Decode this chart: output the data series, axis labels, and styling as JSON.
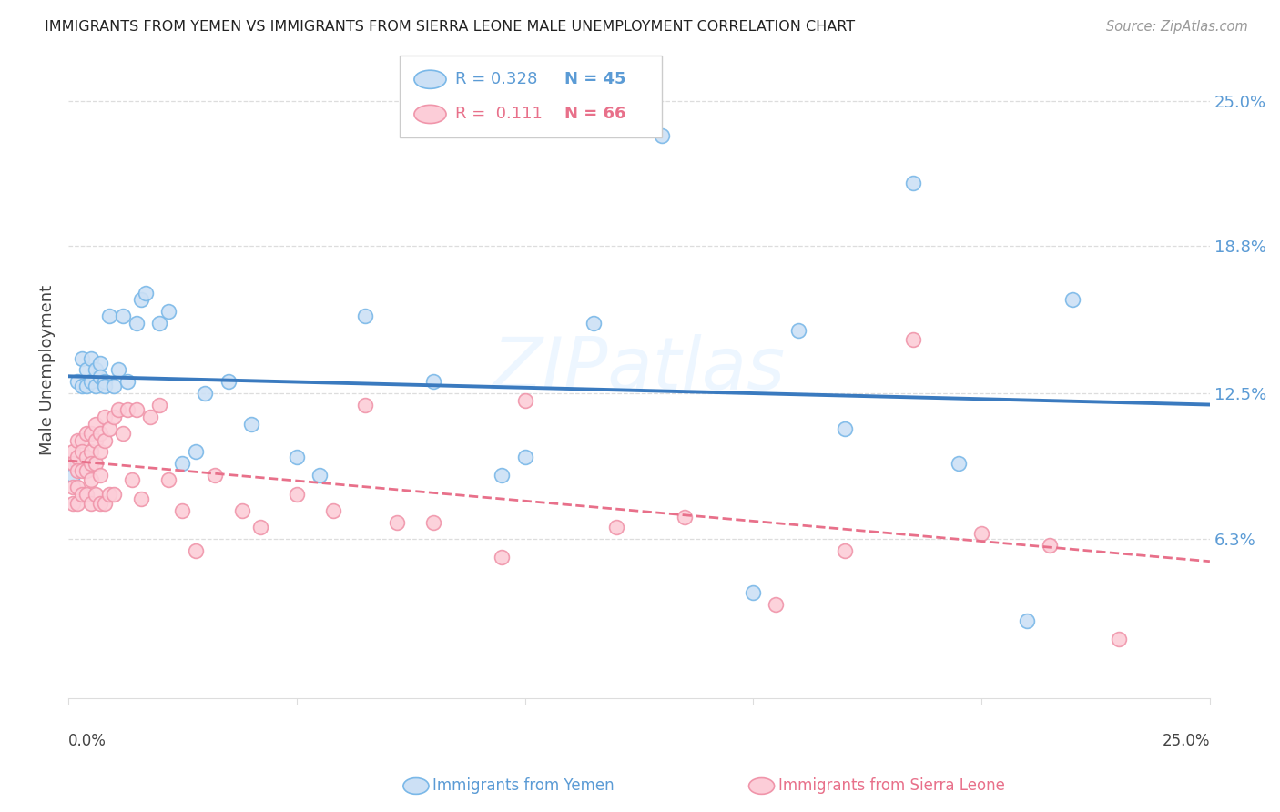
{
  "title": "IMMIGRANTS FROM YEMEN VS IMMIGRANTS FROM SIERRA LEONE MALE UNEMPLOYMENT CORRELATION CHART",
  "source": "Source: ZipAtlas.com",
  "ylabel": "Male Unemployment",
  "ytick_labels": [
    "25.0%",
    "18.8%",
    "12.5%",
    "6.3%"
  ],
  "ytick_values": [
    0.25,
    0.188,
    0.125,
    0.063
  ],
  "xlim": [
    0.0,
    0.25
  ],
  "ylim": [
    -0.005,
    0.275
  ],
  "legend_r1": "R = 0.328",
  "legend_n1": "N = 45",
  "legend_r2": "R =  0.111",
  "legend_n2": "N = 66",
  "watermark": "ZIPatlas",
  "legend1_label": "Immigrants from Yemen",
  "legend2_label": "Immigrants from Sierra Leone",
  "yemen_x": [
    0.001,
    0.002,
    0.002,
    0.003,
    0.003,
    0.004,
    0.004,
    0.005,
    0.005,
    0.006,
    0.006,
    0.007,
    0.007,
    0.008,
    0.008,
    0.009,
    0.01,
    0.011,
    0.012,
    0.013,
    0.015,
    0.016,
    0.017,
    0.02,
    0.022,
    0.025,
    0.028,
    0.03,
    0.035,
    0.04,
    0.05,
    0.055,
    0.065,
    0.08,
    0.095,
    0.1,
    0.115,
    0.13,
    0.15,
    0.16,
    0.17,
    0.185,
    0.195,
    0.21,
    0.22
  ],
  "yemen_y": [
    0.09,
    0.13,
    0.095,
    0.14,
    0.128,
    0.135,
    0.128,
    0.14,
    0.13,
    0.135,
    0.128,
    0.138,
    0.132,
    0.13,
    0.128,
    0.158,
    0.128,
    0.135,
    0.158,
    0.13,
    0.155,
    0.165,
    0.168,
    0.155,
    0.16,
    0.095,
    0.1,
    0.125,
    0.13,
    0.112,
    0.098,
    0.09,
    0.158,
    0.13,
    0.09,
    0.098,
    0.155,
    0.235,
    0.04,
    0.152,
    0.11,
    0.215,
    0.095,
    0.028,
    0.165
  ],
  "sl_x": [
    0.001,
    0.001,
    0.001,
    0.001,
    0.002,
    0.002,
    0.002,
    0.002,
    0.002,
    0.003,
    0.003,
    0.003,
    0.003,
    0.004,
    0.004,
    0.004,
    0.004,
    0.005,
    0.005,
    0.005,
    0.005,
    0.005,
    0.006,
    0.006,
    0.006,
    0.006,
    0.007,
    0.007,
    0.007,
    0.007,
    0.008,
    0.008,
    0.008,
    0.009,
    0.009,
    0.01,
    0.01,
    0.011,
    0.012,
    0.013,
    0.014,
    0.015,
    0.016,
    0.018,
    0.02,
    0.022,
    0.025,
    0.028,
    0.032,
    0.038,
    0.042,
    0.05,
    0.058,
    0.065,
    0.072,
    0.08,
    0.095,
    0.1,
    0.12,
    0.135,
    0.155,
    0.17,
    0.185,
    0.2,
    0.215,
    0.23
  ],
  "sl_y": [
    0.1,
    0.095,
    0.085,
    0.078,
    0.105,
    0.098,
    0.092,
    0.085,
    0.078,
    0.105,
    0.1,
    0.092,
    0.082,
    0.108,
    0.098,
    0.092,
    0.082,
    0.108,
    0.1,
    0.095,
    0.088,
    0.078,
    0.112,
    0.105,
    0.095,
    0.082,
    0.108,
    0.1,
    0.09,
    0.078,
    0.115,
    0.105,
    0.078,
    0.11,
    0.082,
    0.115,
    0.082,
    0.118,
    0.108,
    0.118,
    0.088,
    0.118,
    0.08,
    0.115,
    0.12,
    0.088,
    0.075,
    0.058,
    0.09,
    0.075,
    0.068,
    0.082,
    0.075,
    0.12,
    0.07,
    0.07,
    0.055,
    0.122,
    0.068,
    0.072,
    0.035,
    0.058,
    0.148,
    0.065,
    0.06,
    0.02
  ],
  "bg_color": "#ffffff",
  "scatter_blue_face": "#cce0f5",
  "scatter_blue_edge": "#7ab8e8",
  "scatter_pink_face": "#fccdd8",
  "scatter_pink_edge": "#f095aa",
  "line_blue": "#3a7abf",
  "line_pink": "#e8708a",
  "grid_color": "#dddddd",
  "ytick_color": "#5b9bd5",
  "title_color": "#222222",
  "source_color": "#999999"
}
